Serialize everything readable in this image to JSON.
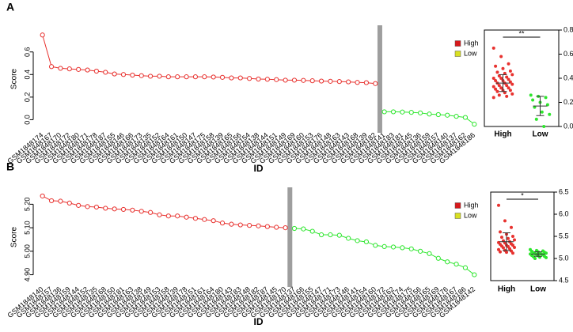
{
  "chart_data": [
    {
      "type": "line",
      "panel": "A",
      "ylabel": "Score",
      "xlabel": "ID",
      "ylim": [
        -0.06,
        0.78
      ],
      "yticks": [
        {
          "value": 0.0,
          "label": "0.0"
        },
        0.2,
        0.4,
        0.6
      ],
      "categories": [
        "GSM1848174",
        "GSM1848167",
        "GSM1848170",
        "GSM1848172",
        "GSM1848180",
        "GSM1848171",
        "GSM1848178",
        "GSM1848187",
        "GSM1848155",
        "GSM1848146",
        "GSM1848166",
        "GSM1848173",
        "GSM1848135",
        "GSM1848152",
        "GSM1848164",
        "GSM1848161",
        "GSM1848150",
        "GSM1848147",
        "GSM1848175",
        "GSM1848158",
        "GSM1848139",
        "GSM1848165",
        "GSM1848156",
        "GSM1848154",
        "GSM1848138",
        "GSM1848144",
        "GSM1848151",
        "GSM1848149",
        "GSM1848169",
        "GSM1848160",
        "GSM1848153",
        "GSM1848176",
        "GSM1848148",
        "GSM1848163",
        "GSM1848143",
        "GSM1848168",
        "GSM1848139",
        "GSM1848182",
        "GSM1848141",
        "GSM1848183",
        "GSM1848181",
        "GSM1848145",
        "GSM1848136",
        "GSM1848159",
        "GSM1848157",
        "GSM1848140",
        "GSM1848137",
        "GSM1848162",
        "GSM1848186"
      ],
      "series": [
        {
          "name": "High",
          "color": "#e8322f",
          "legend_color": "#d7191c",
          "values": [
            0.75,
            0.47,
            0.455,
            0.45,
            0.445,
            0.44,
            0.43,
            0.42,
            0.405,
            0.4,
            0.395,
            0.39,
            0.385,
            0.385,
            0.38,
            0.38,
            0.38,
            0.38,
            0.38,
            0.378,
            0.375,
            0.37,
            0.37,
            0.365,
            0.36,
            0.358,
            0.355,
            0.35,
            0.35,
            0.348,
            0.345,
            0.342,
            0.34,
            0.338,
            0.335,
            0.33,
            0.328,
            0.32,
            null,
            null,
            null,
            null,
            null,
            null,
            null,
            null,
            null,
            null,
            null
          ]
        },
        {
          "name": "Low",
          "color": "#2ee62e",
          "legend_color": "#d9e021",
          "values": [
            null,
            null,
            null,
            null,
            null,
            null,
            null,
            null,
            null,
            null,
            null,
            null,
            null,
            null,
            null,
            null,
            null,
            null,
            null,
            null,
            null,
            null,
            null,
            null,
            null,
            null,
            null,
            null,
            null,
            null,
            null,
            null,
            null,
            null,
            null,
            null,
            null,
            null,
            0.07,
            0.07,
            0.068,
            0.065,
            0.06,
            0.05,
            0.045,
            0.04,
            0.03,
            0.02,
            -0.04
          ]
        }
      ]
    },
    {
      "type": "strip",
      "ylim": [
        0,
        0.8
      ],
      "yticks": [
        {
          "value": 0.0,
          "label": "0.0"
        },
        0.2,
        0.4,
        0.6,
        0.8
      ],
      "annotation": "**",
      "groups": [
        {
          "name": "High",
          "color": "#e8322f",
          "mean": 0.36,
          "sd": 0.07,
          "values": [
            0.65,
            0.58,
            0.52,
            0.5,
            0.48,
            0.46,
            0.45,
            0.44,
            0.43,
            0.42,
            0.41,
            0.4,
            0.4,
            0.39,
            0.38,
            0.38,
            0.37,
            0.36,
            0.36,
            0.35,
            0.34,
            0.34,
            0.33,
            0.32,
            0.32,
            0.31,
            0.3,
            0.3,
            0.29,
            0.28,
            0.27,
            0.26,
            0.25,
            0.24
          ]
        },
        {
          "name": "Low",
          "color": "#2ee62e",
          "mean": 0.17,
          "sd": 0.08,
          "values": [
            0.26,
            0.25,
            0.24,
            0.22,
            0.2,
            0.18,
            0.16,
            0.12,
            0.1,
            0.06,
            0.0
          ]
        }
      ]
    },
    {
      "type": "line",
      "panel": "B",
      "ylabel": "Score",
      "xlabel": "ID",
      "ylim": [
        4.875,
        5.245
      ],
      "yticks": [
        {
          "value": 4.9,
          "label": "4.90"
        },
        {
          "value": 5.0,
          "label": "5.00"
        },
        {
          "value": 5.1,
          "label": "5.10"
        },
        {
          "value": 5.2,
          "label": "5.20"
        }
      ],
      "categories": [
        "GSM1848140",
        "GSM1848157",
        "GSM1848136",
        "GSM1848159",
        "GSM1848144",
        "GSM1848152",
        "GSM1848135",
        "GSM1848168",
        "GSM1848150",
        "GSM1848181",
        "GSM1848163",
        "GSM1848138",
        "GSM1848149",
        "GSM1848153",
        "GSM1848158",
        "GSM1848139",
        "GSM1848178",
        "GSM1848151",
        "GSM1848161",
        "GSM1848164",
        "GSM1848180",
        "GSM1848143",
        "GSM1848183",
        "GSM1848148",
        "GSM1848182",
        "GSM1848187",
        "GSM1848145",
        "GSM1848170",
        "GSM1848137",
        "GSM1848166",
        "GSM1848155",
        "GSM1848147",
        "GSM1848171",
        "GSM1848173",
        "GSM1848146",
        "GSM1848141",
        "GSM1848154",
        "GSM1848160",
        "GSM1848172",
        "GSM1848162",
        "GSM1848174",
        "GSM1848175",
        "GSM1848156",
        "GSM1848165",
        "GSM1848169",
        "GSM1848176",
        "GSM1848167",
        "GSM1848186",
        "GSM1848142"
      ],
      "series": [
        {
          "name": "High",
          "color": "#e8322f",
          "legend_color": "#d7191c",
          "values": [
            5.235,
            5.215,
            5.213,
            5.205,
            5.195,
            5.19,
            5.188,
            5.183,
            5.18,
            5.178,
            5.175,
            5.17,
            5.165,
            5.155,
            5.15,
            5.15,
            5.145,
            5.14,
            5.135,
            5.13,
            5.12,
            5.115,
            5.112,
            5.11,
            5.108,
            5.105,
            5.102,
            5.1,
            null,
            null,
            null,
            null,
            null,
            null,
            null,
            null,
            null,
            null,
            null,
            null,
            null,
            null,
            null,
            null,
            null,
            null,
            null,
            null,
            null
          ]
        },
        {
          "name": "Low",
          "color": "#2ee62e",
          "legend_color": "#d9e021",
          "values": [
            null,
            null,
            null,
            null,
            null,
            null,
            null,
            null,
            null,
            null,
            null,
            null,
            null,
            null,
            null,
            null,
            null,
            null,
            null,
            null,
            null,
            null,
            null,
            null,
            null,
            null,
            null,
            null,
            5.097,
            5.095,
            5.085,
            5.07,
            5.07,
            5.068,
            5.055,
            5.045,
            5.04,
            5.025,
            5.02,
            5.018,
            5.015,
            5.01,
            5.0,
            4.99,
            4.97,
            4.955,
            4.945,
            4.93,
            4.9
          ]
        }
      ]
    },
    {
      "type": "strip",
      "ylim": [
        4.5,
        6.5
      ],
      "yticks": [
        4.5,
        {
          "value": 5.0,
          "label": "5.0"
        },
        5.5,
        {
          "value": 6.0,
          "label": "6.0"
        },
        6.5
      ],
      "annotation": "*",
      "groups": [
        {
          "name": "High",
          "color": "#e8322f",
          "mean": 5.38,
          "sd": 0.2,
          "values": [
            6.2,
            5.85,
            5.7,
            5.6,
            5.55,
            5.5,
            5.48,
            5.45,
            5.42,
            5.4,
            5.38,
            5.36,
            5.35,
            5.33,
            5.32,
            5.3,
            5.3,
            5.28,
            5.27,
            5.25,
            5.24,
            5.22,
            5.2,
            5.18,
            5.17,
            5.15,
            5.14,
            5.12
          ]
        },
        {
          "name": "Low",
          "color": "#2ee62e",
          "mean": 5.1,
          "sd": 0.05,
          "values": [
            5.2,
            5.18,
            5.17,
            5.16,
            5.15,
            5.14,
            5.13,
            5.12,
            5.12,
            5.11,
            5.1,
            5.1,
            5.09,
            5.08,
            5.07,
            5.06,
            5.05,
            5.04,
            5.03,
            5.02,
            5.0
          ]
        }
      ]
    }
  ]
}
